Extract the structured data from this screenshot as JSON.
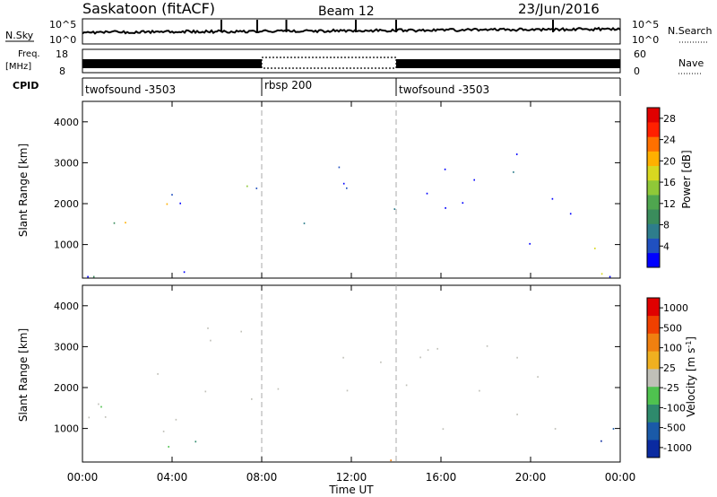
{
  "header": {
    "title": "Saskatoon (fitACF)",
    "beam": "Beam 12",
    "date": "23/Jun/2016"
  },
  "top_panels": {
    "nsky_label": "N.Sky",
    "nsky_ticks": [
      "10^5",
      "10^0"
    ],
    "nsearch_label": "N.Search",
    "freq_label": "Freq.",
    "freq_unit": "[MHz]",
    "freq_ticks": [
      "18",
      "8"
    ],
    "nave_label": "Nave",
    "nave_ticks": [
      "60",
      "0"
    ],
    "cpid_label": "CPID",
    "cpid_segments": [
      {
        "name": "twofsound -3503",
        "start_hour": 0,
        "end_hour": 8
      },
      {
        "name": "rbsp 200",
        "start_hour": 8,
        "end_hour": 14
      },
      {
        "name": "twofsound -3503",
        "start_hour": 14,
        "end_hour": 24
      }
    ]
  },
  "time_axis": {
    "label": "Time UT",
    "ticks": [
      "00:00",
      "04:00",
      "08:00",
      "12:00",
      "16:00",
      "20:00",
      "00:00"
    ],
    "range_hours": [
      0,
      24
    ]
  },
  "chart_data": [
    {
      "type": "heatmap",
      "name": "power",
      "xlabel": "Time UT",
      "ylabel": "Slant Range [km]",
      "y_ticks": [
        "1000",
        "2000",
        "3000",
        "4000"
      ],
      "ylim": [
        180,
        4500
      ],
      "xlim_hours": [
        0,
        24
      ],
      "colorbar": {
        "label": "Power [dB]",
        "ticks": [
          "4",
          "8",
          "12",
          "16",
          "20",
          "24",
          "28"
        ],
        "range": [
          0,
          30
        ],
        "colors": [
          "#0000ff",
          "#2050c0",
          "#2e7d8c",
          "#3a8c5c",
          "#4fa64f",
          "#8fc838",
          "#d8d820",
          "#ffb000",
          "#ff7000",
          "#ff2000",
          "#e00000"
        ]
      },
      "echo_regions": [
        {
          "t0": 0.0,
          "t1": 3.8,
          "r0": 900,
          "r1": 2400,
          "level": "high"
        },
        {
          "t0": 0.5,
          "t1": 1.5,
          "r0": 2700,
          "r1": 3500,
          "level": "mid"
        },
        {
          "t0": 3.0,
          "t1": 5.8,
          "r0": 1600,
          "r1": 2600,
          "level": "mid"
        },
        {
          "t0": 5.5,
          "t1": 8.0,
          "r0": 1800,
          "r1": 3300,
          "level": "mid"
        },
        {
          "t0": 9.5,
          "t1": 11.5,
          "r0": 800,
          "r1": 1800,
          "level": "low"
        },
        {
          "t0": 11.0,
          "t1": 15.5,
          "r0": 1600,
          "r1": 3100,
          "level": "low"
        },
        {
          "t0": 14.5,
          "t1": 23.0,
          "r0": 1000,
          "r1": 2300,
          "level": "low"
        },
        {
          "t0": 15.0,
          "t1": 22.5,
          "r0": 2300,
          "r1": 3300,
          "level": "low"
        },
        {
          "t0": 22.0,
          "t1": 24.0,
          "r0": 300,
          "r1": 2300,
          "level": "high"
        },
        {
          "t0": 0.0,
          "t1": 24.0,
          "r0": 180,
          "r1": 450,
          "level": "ground"
        }
      ]
    },
    {
      "type": "heatmap",
      "name": "velocity",
      "xlabel": "Time UT",
      "ylabel": "Slant Range [km]",
      "y_ticks": [
        "1000",
        "2000",
        "3000",
        "4000"
      ],
      "ylim": [
        180,
        4500
      ],
      "xlim_hours": [
        0,
        24
      ],
      "colorbar": {
        "label": "Velocity [m s-1]",
        "ticks": [
          "1000",
          "500",
          "100",
          "25",
          "-25",
          "-100",
          "-500",
          "-1000"
        ],
        "colors": [
          "#0a2aa0",
          "#1a5aa8",
          "#2e8a6c",
          "#4fc24f",
          "#c0c0b8",
          "#f0b020",
          "#f08010",
          "#f04000",
          "#e00000"
        ]
      },
      "echo_regions": [
        {
          "t0": 0.0,
          "t1": 8.0,
          "r0": 900,
          "r1": 3500,
          "class": "ground"
        },
        {
          "t0": 8.0,
          "t1": 15.0,
          "r0": 1600,
          "r1": 3000,
          "class": "ground"
        },
        {
          "t0": 14.5,
          "t1": 22.5,
          "r0": 1000,
          "r1": 3300,
          "class": "ground"
        },
        {
          "t0": 9.5,
          "t1": 10.2,
          "r0": 1000,
          "r1": 1700,
          "class": "away"
        },
        {
          "t0": 10.5,
          "t1": 11.5,
          "r0": 1000,
          "r1": 1800,
          "class": "away"
        },
        {
          "t0": 22.0,
          "t1": 24.0,
          "r0": 500,
          "r1": 2200,
          "class": "toward"
        },
        {
          "t0": 2.0,
          "t1": 8.0,
          "r0": 200,
          "r1": 700,
          "class": "slow-toward"
        },
        {
          "t0": 12.0,
          "t1": 20.0,
          "r0": 180,
          "r1": 420,
          "class": "slow-away"
        }
      ]
    }
  ]
}
